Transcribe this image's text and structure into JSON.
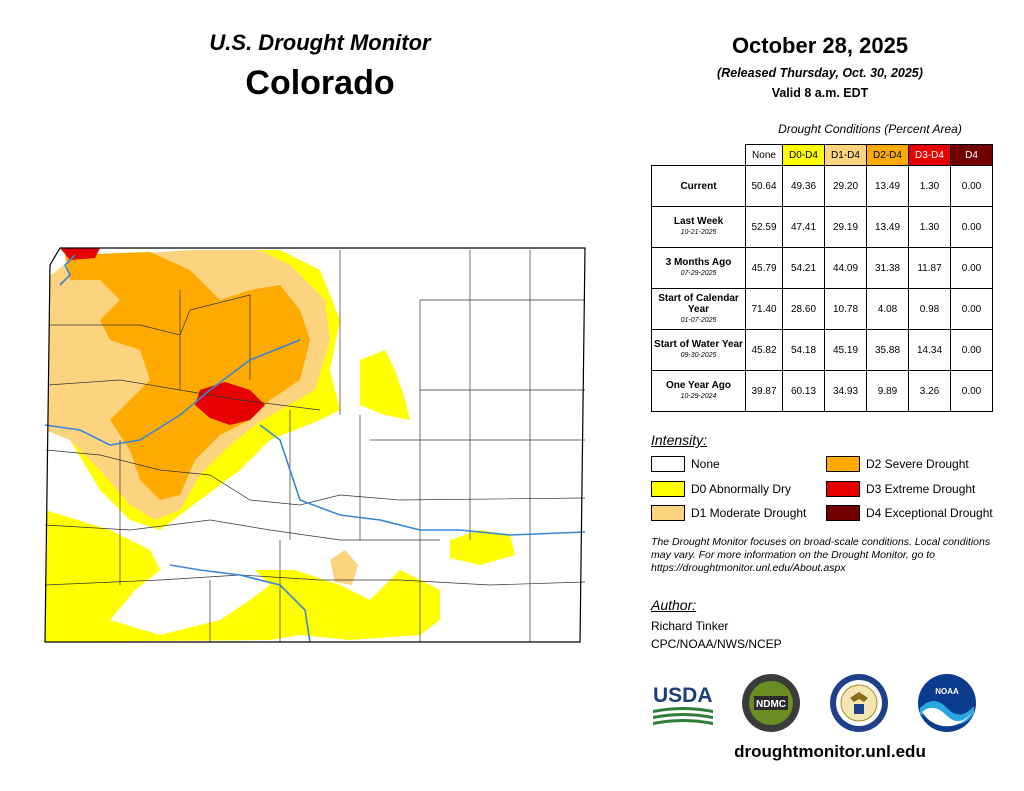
{
  "header": {
    "title": "U.S. Drought Monitor",
    "state": "Colorado",
    "date": "October 28, 2025",
    "released": "(Released Thursday, Oct. 30, 2025)",
    "valid": "Valid 8 a.m. EDT"
  },
  "table": {
    "caption": "Drought Conditions (Percent Area)",
    "columns": [
      {
        "label": "None",
        "color": "#ffffff"
      },
      {
        "label": "D0-D4",
        "color": "#ffff00"
      },
      {
        "label": "D1-D4",
        "color": "#fcd37f"
      },
      {
        "label": "D2-D4",
        "color": "#ffaa00"
      },
      {
        "label": "D3-D4",
        "color": "#e60000"
      },
      {
        "label": "D4",
        "color": "#730000"
      }
    ],
    "rows": [
      {
        "label": "Current",
        "date": "",
        "values": [
          "50.64",
          "49.36",
          "29.20",
          "13.49",
          "1.30",
          "0.00"
        ]
      },
      {
        "label": "Last Week",
        "date": "10-21-2025",
        "values": [
          "52.59",
          "47.41",
          "29.19",
          "13.49",
          "1.30",
          "0.00"
        ]
      },
      {
        "label": "3 Months Ago",
        "date": "07-29-2025",
        "values": [
          "45.79",
          "54.21",
          "44.09",
          "31.38",
          "11.87",
          "0.00"
        ]
      },
      {
        "label": "Start of Calendar Year",
        "date": "01-07-2025",
        "values": [
          "71.40",
          "28.60",
          "10.78",
          "4.08",
          "0.98",
          "0.00"
        ]
      },
      {
        "label": "Start of Water Year",
        "date": "09-30-2025",
        "values": [
          "45.82",
          "54.18",
          "45.19",
          "35.88",
          "14.34",
          "0.00"
        ]
      },
      {
        "label": "One Year Ago",
        "date": "10-29-2024",
        "values": [
          "39.87",
          "60.13",
          "34.93",
          "9.89",
          "3.26",
          "0.00"
        ]
      }
    ]
  },
  "legend": {
    "title": "Intensity:",
    "items": [
      {
        "label": "None",
        "color": "#ffffff"
      },
      {
        "label": "D0 Abnormally Dry",
        "color": "#ffff00"
      },
      {
        "label": "D1 Moderate Drought",
        "color": "#fcd37f"
      },
      {
        "label": "D2 Severe Drought",
        "color": "#ffaa00"
      },
      {
        "label": "D3 Extreme Drought",
        "color": "#e60000"
      },
      {
        "label": "D4 Exceptional Drought",
        "color": "#730000"
      }
    ]
  },
  "note": "The Drought Monitor focuses on broad-scale conditions. Local conditions may vary. For more information on the Drought Monitor, go to https://droughtmonitor.unl.edu/About.aspx",
  "author": {
    "title": "Author:",
    "name": "Richard Tinker",
    "org": "CPC/NOAA/NWS/NCEP"
  },
  "logos": {
    "usda": "USDA",
    "ndmc": "NDMC",
    "noaa": "NOAA"
  },
  "url": "droughtmonitor.unl.edu"
}
